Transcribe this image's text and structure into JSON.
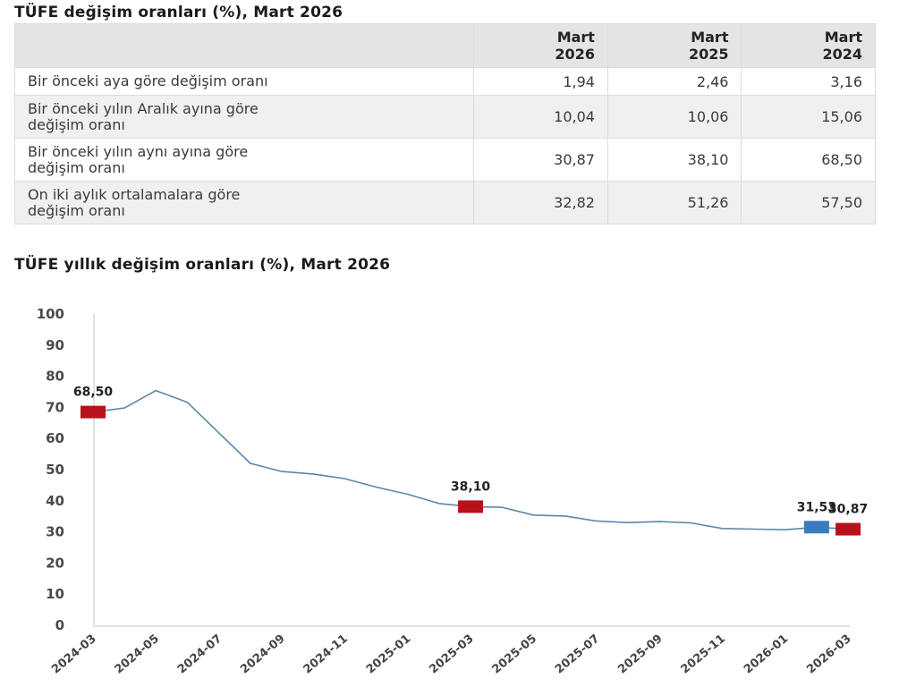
{
  "table": {
    "title": "TÜFE değişim oranları (%), Mart 2026",
    "columns": [
      "",
      "Mart\n2026",
      "Mart\n2025",
      "Mart\n2024"
    ],
    "col_heads": [
      {
        "line1": "Mart",
        "line2": "2026"
      },
      {
        "line1": "Mart",
        "line2": "2025"
      },
      {
        "line1": "Mart",
        "line2": "2024"
      }
    ],
    "rows": [
      {
        "label1": "Bir önceki aya göre değişim oranı",
        "label2": "",
        "values": [
          "1,94",
          "2,46",
          "3,16"
        ]
      },
      {
        "label1": "Bir önceki yılın Aralık ayına göre",
        "label2": "değişim oranı",
        "values": [
          "10,04",
          "10,06",
          "15,06"
        ]
      },
      {
        "label1": "Bir önceki yılın aynı ayına göre",
        "label2": "değişim oranı",
        "values": [
          "30,87",
          "38,10",
          "68,50"
        ]
      },
      {
        "label1": "On iki aylık ortalamalara göre",
        "label2": "değişim oranı",
        "values": [
          "32,82",
          "51,26",
          "57,50"
        ]
      }
    ]
  },
  "chart_data": {
    "type": "line",
    "title": "TÜFE yıllık değişim oranları (%), Mart 2026",
    "xlabel": "",
    "ylabel": "",
    "ylim": [
      0,
      100
    ],
    "yticks": [
      0,
      10,
      20,
      30,
      40,
      50,
      60,
      70,
      80,
      90,
      100
    ],
    "x": [
      "2024-03",
      "2024-04",
      "2024-05",
      "2024-06",
      "2024-07",
      "2024-08",
      "2024-09",
      "2024-10",
      "2024-11",
      "2024-12",
      "2025-01",
      "2025-02",
      "2025-03",
      "2025-04",
      "2025-05",
      "2025-06",
      "2025-07",
      "2025-08",
      "2025-09",
      "2025-10",
      "2025-11",
      "2025-12",
      "2026-01",
      "2026-02",
      "2026-03"
    ],
    "xtick_labels": [
      "2024-03",
      "2024-05",
      "2024-07",
      "2024-09",
      "2024-11",
      "2025-01",
      "2025-03",
      "2025-05",
      "2025-07",
      "2025-09",
      "2025-11",
      "2026-01",
      "2026-03"
    ],
    "series": [
      {
        "name": "TÜFE yıllık değişim",
        "color": "#5b87a8",
        "values": [
          68.5,
          69.8,
          75.4,
          71.6,
          61.8,
          52.0,
          49.4,
          48.6,
          47.1,
          44.4,
          42.1,
          39.1,
          38.1,
          37.9,
          35.4,
          35.1,
          33.5,
          33.0,
          33.3,
          32.9,
          31.1,
          30.9,
          30.7,
          31.53,
          30.87
        ]
      }
    ],
    "highlights": [
      {
        "x": "2024-03",
        "value": 68.5,
        "label": "68,50",
        "color": "#b5121b"
      },
      {
        "x": "2025-03",
        "value": 38.1,
        "label": "38,10",
        "color": "#b5121b"
      },
      {
        "x": "2026-02",
        "value": 31.53,
        "label": "31,53",
        "color": "#3a7dbf"
      },
      {
        "x": "2026-03",
        "value": 30.87,
        "label": "30,87",
        "color": "#b5121b"
      }
    ],
    "grid": false,
    "legend": "none"
  }
}
